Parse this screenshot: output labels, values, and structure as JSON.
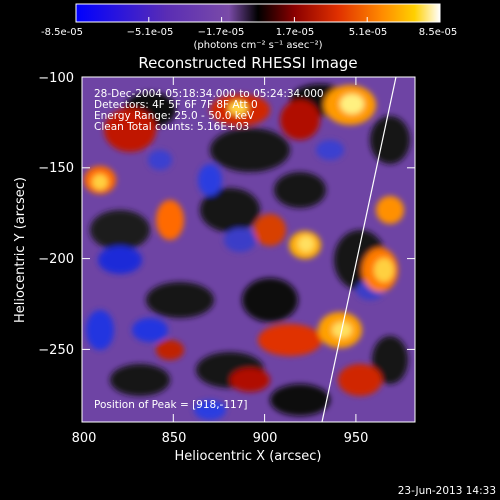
{
  "colorbar": {
    "tick_labels": [
      "-8.5e-05",
      "−5.1e-05",
      "−1.7e-05",
      "1.7e-05",
      "5.1e-05",
      "8.5e-05"
    ],
    "unit_label": "(photons cm⁻² s⁻¹ asec⁻²)",
    "colors": [
      "#0000ff",
      "#5a2db4",
      "#7a4ba8",
      "#000000",
      "#8a0000",
      "#e03000",
      "#ff8a00",
      "#ffd000",
      "#ffffff"
    ]
  },
  "plot": {
    "title": "Reconstructed RHESSI Image",
    "xlabel": "Heliocentric X (arcsec)",
    "ylabel": "Heliocentric Y (arcsec)",
    "x_ticks": [
      "800",
      "850",
      "900",
      "950"
    ],
    "y_ticks": [
      "−100",
      "−150",
      "−200",
      "−250"
    ],
    "x_range": [
      795,
      985
    ],
    "y_range": [
      -290,
      -100
    ]
  },
  "annotations": {
    "line1": "28-Dec-2004 05:18:34.000 to 05:24:34.000",
    "line2": "Detectors: 4F 5F 6F 7F 8F   Att 0",
    "line3": "Energy Range: 25.0 - 50.0 keV",
    "line4": "Clean     Total counts: 5.16E+03",
    "peak": "Position of Peak = [918,-117]"
  },
  "footer": {
    "date": "23-Jun-2013 14:33"
  },
  "peak_position": [
    918,
    -117
  ]
}
